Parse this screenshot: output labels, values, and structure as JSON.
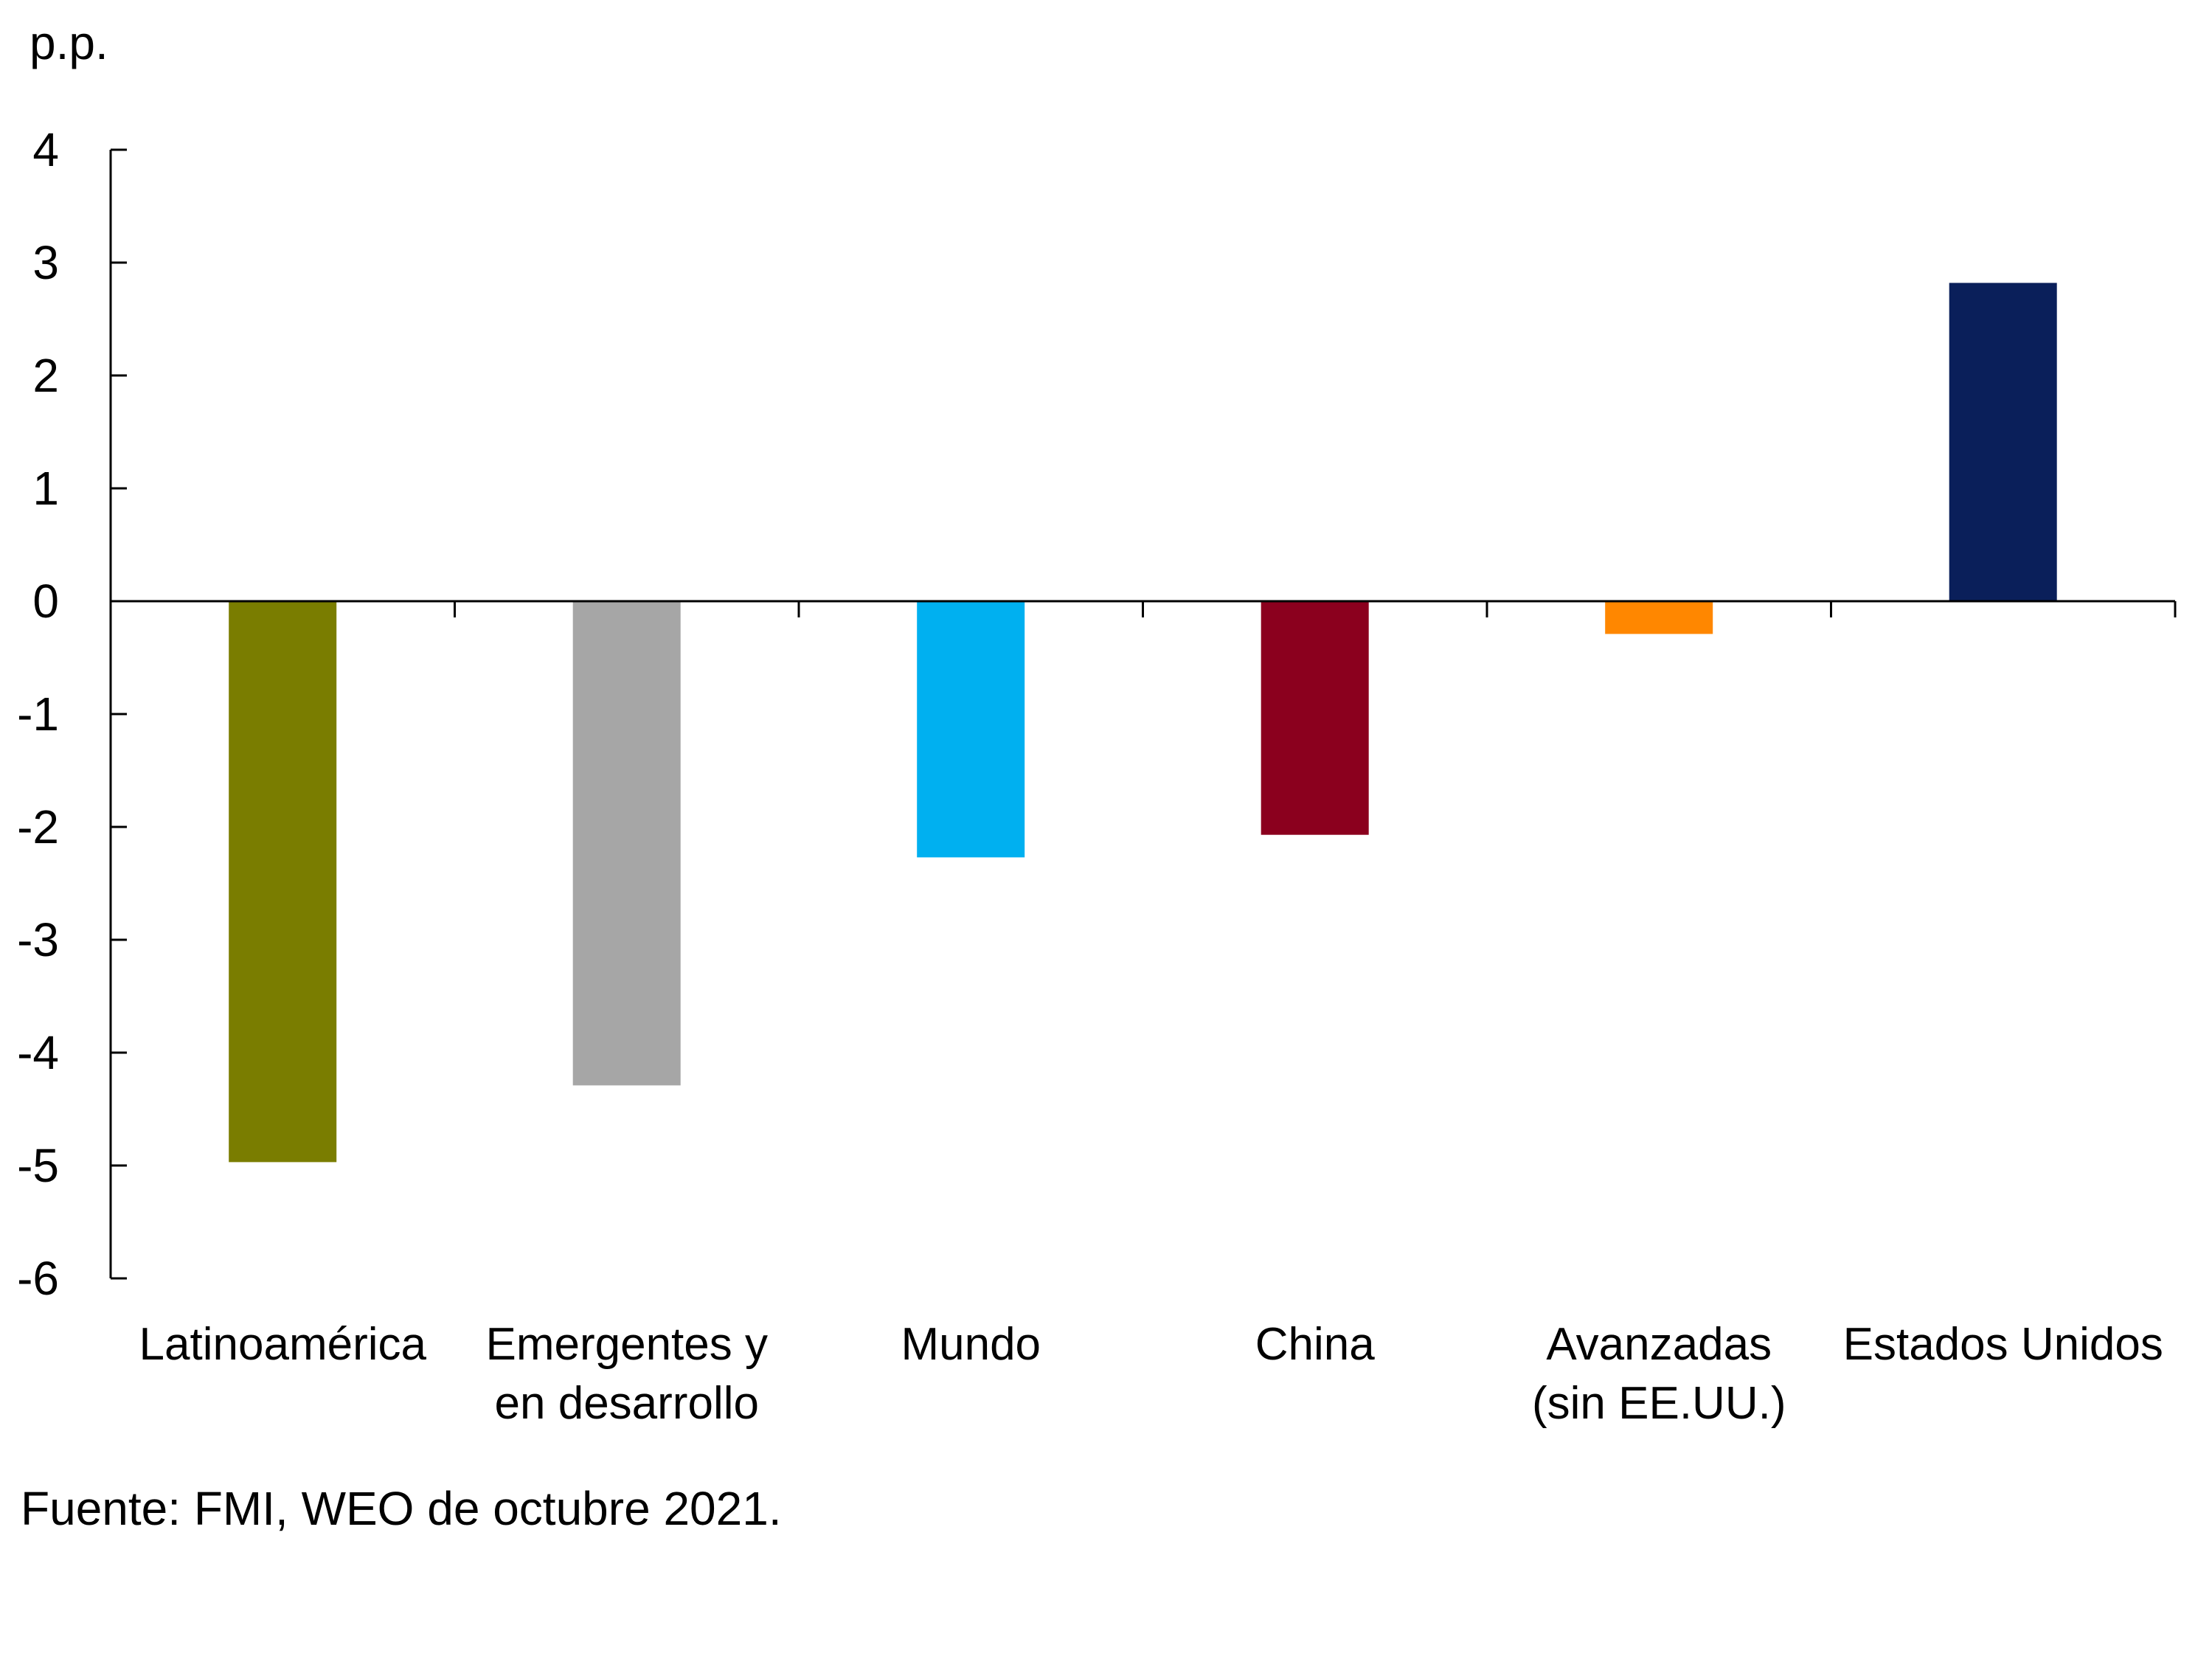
{
  "chart_data": {
    "type": "bar",
    "title": "",
    "ylabel": "p.p.",
    "xlabel": "",
    "ylim": [
      -6,
      4
    ],
    "yticks": [
      4,
      3,
      2,
      1,
      0,
      -1,
      -2,
      -3,
      -4,
      -5,
      -6
    ],
    "ytick_labels": [
      "4",
      "3",
      "2",
      "1",
      "0",
      "-1",
      "-2",
      "-3",
      "-4",
      "-5",
      "-6"
    ],
    "grid": false,
    "legend": "none",
    "categories": [
      [
        "Latinoamérica"
      ],
      [
        "Emergentes y",
        "en desarrollo"
      ],
      [
        "Mundo"
      ],
      [
        "China"
      ],
      [
        "Avanzadas",
        "(sin EE.UU.)"
      ],
      [
        "Estados Unidos"
      ]
    ],
    "values": [
      -4.97,
      -4.29,
      -2.27,
      -2.07,
      -0.29,
      2.82
    ],
    "colors": [
      "#7a7d00",
      "#a6a6a6",
      "#00b0f0",
      "#8b001e",
      "#ff8700",
      "#0a1f5a"
    ]
  },
  "footnote": "Fuente: FMI, WEO de octubre 2021."
}
